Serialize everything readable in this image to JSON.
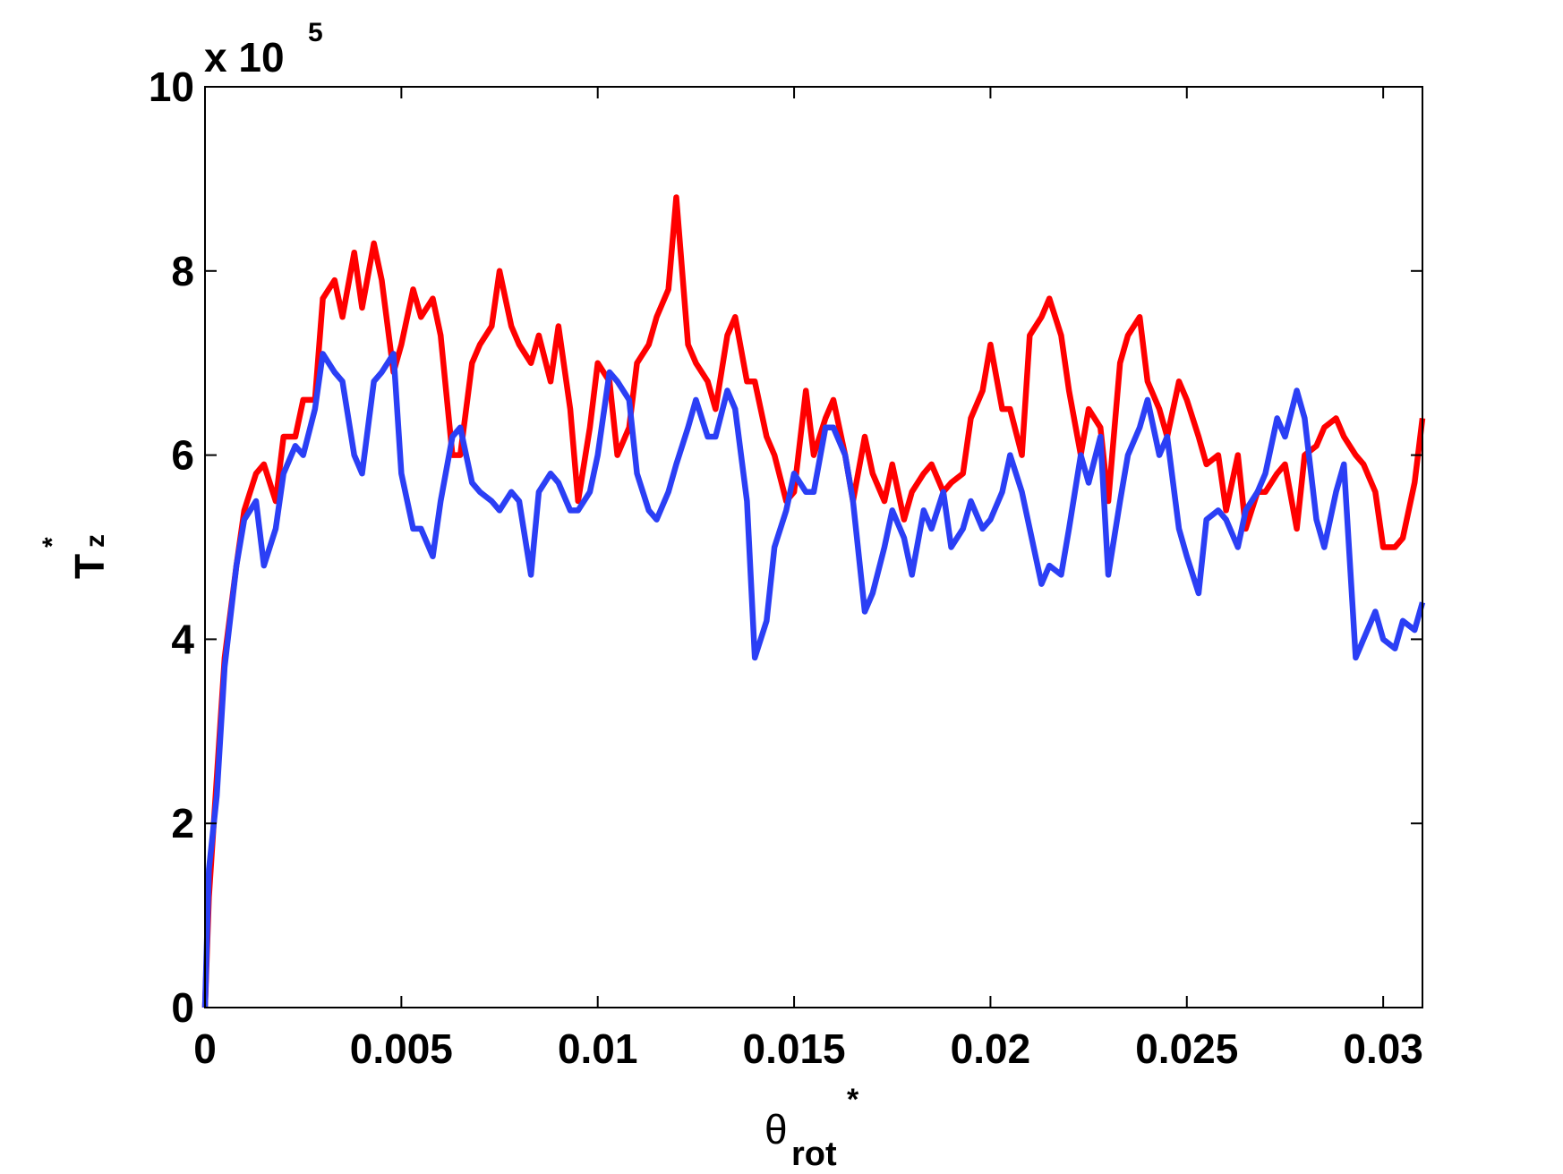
{
  "chart_data": {
    "type": "line",
    "xlabel": {
      "base": "θ",
      "sub": "rot",
      "sup": "*"
    },
    "ylabel": {
      "base": "T",
      "sub": "z",
      "sup": "*"
    },
    "y_multiplier": {
      "base": "x 10",
      "exponent": "5"
    },
    "xlim": [
      0,
      0.031
    ],
    "ylim": [
      0,
      10
    ],
    "xticks": [
      0,
      0.005,
      0.01,
      0.015,
      0.02,
      0.025,
      0.03
    ],
    "yticks": [
      0,
      2,
      4,
      6,
      8,
      10
    ],
    "grid": false,
    "x": [
      0,
      0.0001,
      0.0003,
      0.0005,
      0.0008,
      0.001,
      0.0013,
      0.0015,
      0.0018,
      0.002,
      0.0023,
      0.0025,
      0.0028,
      0.003,
      0.0033,
      0.0035,
      0.0038,
      0.004,
      0.0043,
      0.0045,
      0.0048,
      0.005,
      0.0053,
      0.0055,
      0.0058,
      0.006,
      0.0063,
      0.0065,
      0.0068,
      0.007,
      0.0073,
      0.0075,
      0.0078,
      0.008,
      0.0083,
      0.0085,
      0.0088,
      0.009,
      0.0093,
      0.0095,
      0.0098,
      0.01,
      0.0103,
      0.0105,
      0.0108,
      0.011,
      0.0113,
      0.0115,
      0.0118,
      0.012,
      0.0123,
      0.0125,
      0.0128,
      0.013,
      0.0133,
      0.0135,
      0.0138,
      0.014,
      0.0143,
      0.0145,
      0.0148,
      0.015,
      0.0153,
      0.0155,
      0.0158,
      0.016,
      0.0163,
      0.0165,
      0.0168,
      0.017,
      0.0173,
      0.0175,
      0.0178,
      0.018,
      0.0183,
      0.0185,
      0.0188,
      0.019,
      0.0193,
      0.0195,
      0.0198,
      0.02,
      0.0203,
      0.0205,
      0.0208,
      0.021,
      0.0213,
      0.0215,
      0.0218,
      0.022,
      0.0223,
      0.0225,
      0.0228,
      0.023,
      0.0233,
      0.0235,
      0.0238,
      0.024,
      0.0243,
      0.0245,
      0.0248,
      0.025,
      0.0253,
      0.0255,
      0.0258,
      0.026,
      0.0263,
      0.0265,
      0.0268,
      0.027,
      0.0273,
      0.0275,
      0.0278,
      0.028,
      0.0283,
      0.0285,
      0.0288,
      0.029,
      0.0293,
      0.0295,
      0.0298,
      0.03,
      0.0303,
      0.0305,
      0.0308,
      0.031
    ],
    "series": [
      {
        "color": "#ff0000",
        "values": [
          0,
          1.2,
          2.5,
          3.8,
          4.8,
          5.4,
          5.8,
          5.9,
          5.5,
          6.2,
          6.2,
          6.6,
          6.6,
          7.7,
          7.9,
          7.5,
          8.2,
          7.6,
          8.3,
          7.9,
          6.9,
          7.2,
          7.8,
          7.5,
          7.7,
          7.3,
          6.0,
          6.0,
          7.0,
          7.2,
          7.4,
          8.0,
          7.4,
          7.2,
          7.0,
          7.3,
          6.8,
          7.4,
          6.5,
          5.5,
          6.3,
          7.0,
          6.8,
          6.0,
          6.3,
          7.0,
          7.2,
          7.5,
          7.8,
          8.8,
          7.2,
          7.0,
          6.8,
          6.5,
          7.3,
          7.5,
          6.8,
          6.8,
          6.2,
          6.0,
          5.5,
          5.6,
          6.7,
          6.0,
          6.4,
          6.6,
          6.0,
          5.5,
          6.2,
          5.8,
          5.5,
          5.9,
          5.3,
          5.6,
          5.8,
          5.9,
          5.6,
          5.7,
          5.8,
          6.4,
          6.7,
          7.2,
          6.5,
          6.5,
          6.0,
          7.3,
          7.5,
          7.7,
          7.3,
          6.7,
          6.0,
          6.5,
          6.3,
          5.5,
          7.0,
          7.3,
          7.5,
          6.8,
          6.5,
          6.2,
          6.8,
          6.6,
          6.2,
          5.9,
          6.0,
          5.4,
          6.0,
          5.2,
          5.6,
          5.6,
          5.8,
          5.9,
          5.2,
          6.0,
          6.1,
          6.3,
          6.4,
          6.2,
          6.0,
          5.9,
          5.6,
          5.0,
          5.0,
          5.1,
          5.7,
          6.4
        ]
      },
      {
        "color": "#2b3ff5",
        "values": [
          0,
          1.5,
          2.3,
          3.7,
          4.8,
          5.3,
          5.5,
          4.8,
          5.2,
          5.8,
          6.1,
          6.0,
          6.5,
          7.1,
          6.9,
          6.8,
          6.0,
          5.8,
          6.8,
          6.9,
          7.1,
          5.8,
          5.2,
          5.2,
          4.9,
          5.5,
          6.2,
          6.3,
          5.7,
          5.6,
          5.5,
          5.4,
          5.6,
          5.5,
          4.7,
          5.6,
          5.8,
          5.7,
          5.4,
          5.4,
          5.6,
          6.0,
          6.9,
          6.8,
          6.6,
          5.8,
          5.4,
          5.3,
          5.6,
          5.9,
          6.3,
          6.6,
          6.2,
          6.2,
          6.7,
          6.5,
          5.5,
          3.8,
          4.2,
          5.0,
          5.4,
          5.8,
          5.6,
          5.6,
          6.3,
          6.3,
          6.0,
          5.5,
          4.3,
          4.5,
          5.0,
          5.4,
          5.1,
          4.7,
          5.4,
          5.2,
          5.6,
          5.0,
          5.2,
          5.5,
          5.2,
          5.3,
          5.6,
          6.0,
          5.6,
          5.2,
          4.6,
          4.8,
          4.7,
          5.2,
          6.0,
          5.7,
          6.2,
          4.7,
          5.5,
          6.0,
          6.3,
          6.6,
          6.0,
          6.2,
          5.2,
          4.9,
          4.5,
          5.3,
          5.4,
          5.3,
          5.0,
          5.4,
          5.6,
          5.8,
          6.4,
          6.2,
          6.7,
          6.4,
          5.3,
          5.0,
          5.6,
          5.9,
          3.8,
          4.0,
          4.3,
          4.0,
          3.9,
          4.2,
          4.1,
          4.4
        ]
      }
    ]
  }
}
